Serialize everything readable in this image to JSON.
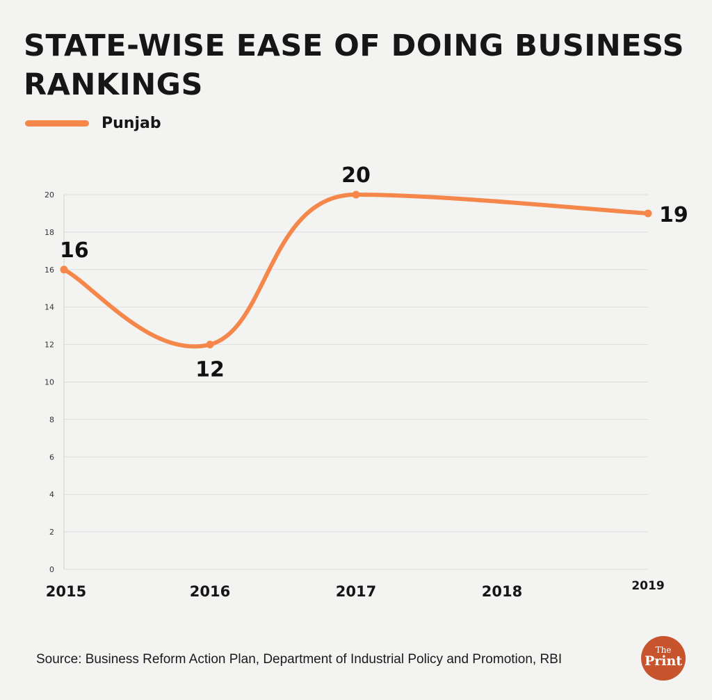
{
  "chart_data": {
    "type": "line",
    "title": "STATE-WISE EASE OF DOING BUSINESS RANKINGS",
    "xlabel": "",
    "ylabel": "",
    "categories": [
      "2015",
      "2016",
      "2017",
      "2018",
      "2019"
    ],
    "series": [
      {
        "name": "Punjab",
        "values": [
          16,
          12,
          20,
          null,
          19
        ],
        "color": "#f5874a"
      }
    ],
    "data_labels": [
      "16",
      "12",
      "20",
      "",
      "19"
    ],
    "ylim": [
      0,
      20
    ],
    "yticks": [
      "0",
      "2",
      "4",
      "6",
      "8",
      "10",
      "12",
      "14",
      "16",
      "18",
      "20"
    ],
    "grid": true,
    "legend": "top-left",
    "smooth": true
  },
  "footer": {
    "source": "Source: Business Reform Action Plan, Department of Industrial Policy and Promotion, RBI",
    "logo_text": "The Print"
  }
}
